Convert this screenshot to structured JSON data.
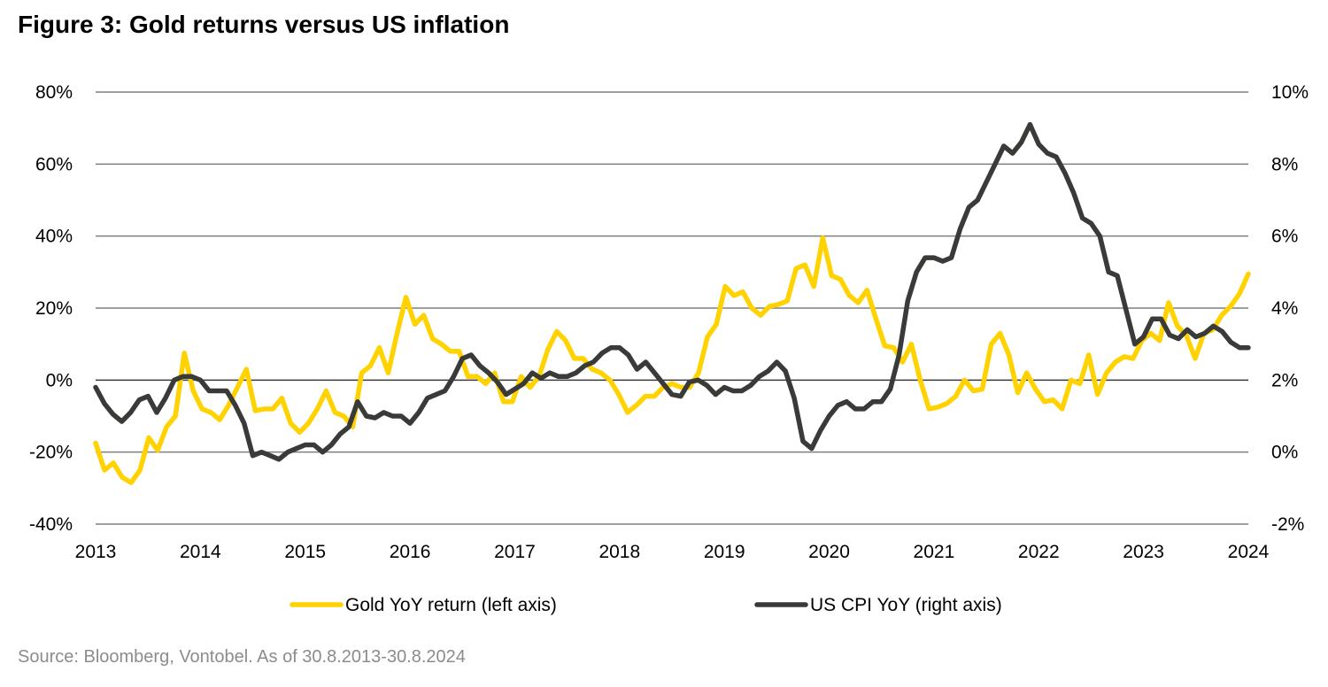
{
  "chart_data": {
    "type": "line",
    "title": "Figure 3: Gold returns versus US inflation",
    "source": "Source: Bloomberg, Vontobel. As of 30.8.2013-30.8.2024",
    "x_tick_labels": [
      "2013",
      "2014",
      "2015",
      "2016",
      "2017",
      "2018",
      "2019",
      "2020",
      "2021",
      "2022",
      "2023",
      "2024"
    ],
    "left_axis": {
      "ticks": [
        80,
        60,
        40,
        20,
        0,
        -20,
        -40
      ],
      "tick_labels": [
        "80%",
        "60%",
        "40%",
        "20%",
        "0%",
        "-20%",
        "-40%"
      ],
      "ylim": [
        -40,
        80
      ]
    },
    "right_axis": {
      "ticks": [
        10,
        8,
        6,
        4,
        2,
        0,
        -2
      ],
      "tick_labels": [
        "10%",
        "8%",
        "6%",
        "4%",
        "2%",
        "0%",
        "-2%"
      ],
      "ylim": [
        -2,
        10
      ]
    },
    "grid": true,
    "legend_position": "bottom",
    "series": [
      {
        "name": "Gold YoY return (left axis)",
        "axis": "left",
        "color": "#FFD200",
        "values": [
          -17.5,
          -25,
          -23,
          -27,
          -28.5,
          -25,
          -16,
          -19.5,
          -13,
          -10,
          7.5,
          -3,
          -8,
          -9,
          -11,
          -7,
          -2,
          3,
          -8.5,
          -8,
          -8,
          -5,
          -12,
          -14.5,
          -12,
          -8,
          -3,
          -9,
          -10,
          -13,
          2,
          4,
          9,
          2,
          13,
          23,
          15.5,
          18,
          11.5,
          10,
          8,
          8,
          1,
          1,
          -1,
          2,
          -6,
          -6,
          1,
          -2,
          1,
          8.5,
          13.5,
          11,
          6,
          6,
          3,
          2,
          0,
          -4,
          -9,
          -7,
          -4.5,
          -4.5,
          -2,
          -1,
          -2,
          -2,
          2,
          12,
          15.5,
          26,
          23.5,
          24.5,
          20,
          18,
          20.5,
          21,
          22,
          31,
          32,
          26,
          39.5,
          29,
          28,
          23.5,
          21.5,
          25,
          17,
          9.5,
          9,
          5,
          10,
          0,
          -8,
          -7.5,
          -6.5,
          -4.5,
          0,
          -3,
          -2.5,
          10,
          13,
          7,
          -3.5,
          2,
          -2.5,
          -6,
          -5.5,
          -8,
          0,
          -1,
          7,
          -4,
          2,
          5,
          6.5,
          6,
          11,
          13,
          11,
          21.5,
          15,
          12.5,
          6,
          13,
          14,
          18,
          20.5,
          24,
          29.5
        ]
      },
      {
        "name": "US CPI YoY (right axis)",
        "axis": "right",
        "color": "#3A3B38",
        "values": [
          1.8,
          1.35,
          1.05,
          0.85,
          1.1,
          1.45,
          1.55,
          1.1,
          1.5,
          2.0,
          2.1,
          2.1,
          2.0,
          1.7,
          1.7,
          1.7,
          1.3,
          0.8,
          -0.1,
          0.0,
          -0.1,
          -0.2,
          0.0,
          0.1,
          0.2,
          0.2,
          0.0,
          0.2,
          0.5,
          0.7,
          1.4,
          1.0,
          0.95,
          1.1,
          1.0,
          1.0,
          0.8,
          1.1,
          1.5,
          1.6,
          1.7,
          2.1,
          2.6,
          2.7,
          2.4,
          2.2,
          1.95,
          1.6,
          1.75,
          1.9,
          2.2,
          2.05,
          2.2,
          2.1,
          2.1,
          2.2,
          2.4,
          2.5,
          2.75,
          2.9,
          2.9,
          2.7,
          2.3,
          2.5,
          2.2,
          1.9,
          1.6,
          1.55,
          1.95,
          2.0,
          1.85,
          1.6,
          1.8,
          1.7,
          1.7,
          1.85,
          2.1,
          2.25,
          2.5,
          2.25,
          1.5,
          0.3,
          0.1,
          0.6,
          1.0,
          1.3,
          1.4,
          1.2,
          1.2,
          1.4,
          1.4,
          1.75,
          2.7,
          4.2,
          5.0,
          5.4,
          5.4,
          5.3,
          5.4,
          6.2,
          6.8,
          7.0,
          7.5,
          8.0,
          8.5,
          8.3,
          8.6,
          9.1,
          8.55,
          8.3,
          8.2,
          7.75,
          7.2,
          6.5,
          6.35,
          6.0,
          5.0,
          4.9,
          3.95,
          3.0,
          3.2,
          3.7,
          3.7,
          3.25,
          3.15,
          3.4,
          3.2,
          3.3,
          3.5,
          3.35,
          3.05,
          2.9,
          2.9
        ]
      }
    ]
  }
}
